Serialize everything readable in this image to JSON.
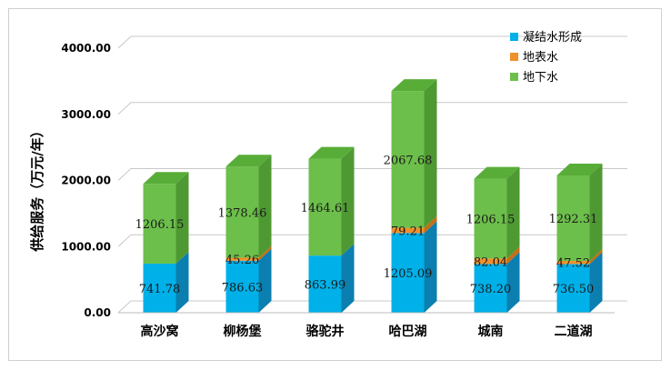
{
  "chart_data": {
    "type": "bar",
    "stacked": true,
    "three_d": true,
    "title": "",
    "xlabel": "",
    "ylabel": "供给服务（万元/年）",
    "ylim": [
      0,
      4000
    ],
    "y_ticks": [
      "0.00",
      "1000.00",
      "2000.00",
      "3000.00",
      "4000.00"
    ],
    "grid": true,
    "legend_position": "top-right",
    "categories": [
      "高沙窝",
      "柳杨堡",
      "骆驼井",
      "哈巴湖",
      "城南",
      "二道湖"
    ],
    "series": [
      {
        "name": "凝结水形成",
        "color": "#00b0e8",
        "side_color": "#0a7fb0",
        "top_color": "#27c3f2",
        "values": [
          741.78,
          786.63,
          863.99,
          1205.09,
          738.2,
          736.5
        ],
        "labels": [
          "741.78",
          "786.63",
          "863.99",
          "1205.09",
          "738.20",
          "736.50"
        ]
      },
      {
        "name": "地表水",
        "color": "#f0902a",
        "side_color": "#c26f17",
        "top_color": "#f5a84e",
        "values": [
          0,
          45.26,
          0,
          79.21,
          82.04,
          47.52
        ],
        "labels": [
          "",
          "45.26",
          "",
          "79.21",
          "82.04",
          "47.52"
        ]
      },
      {
        "name": "地下水",
        "color": "#6cbf4a",
        "side_color": "#4f9933",
        "top_color": "#58ad38",
        "values": [
          1206.15,
          1378.46,
          1464.61,
          2067.68,
          1206.15,
          1292.31
        ],
        "labels": [
          "1206.15",
          "1378.46",
          "1464.61",
          "2067.68",
          "1206.15",
          "1292.31"
        ]
      }
    ]
  }
}
